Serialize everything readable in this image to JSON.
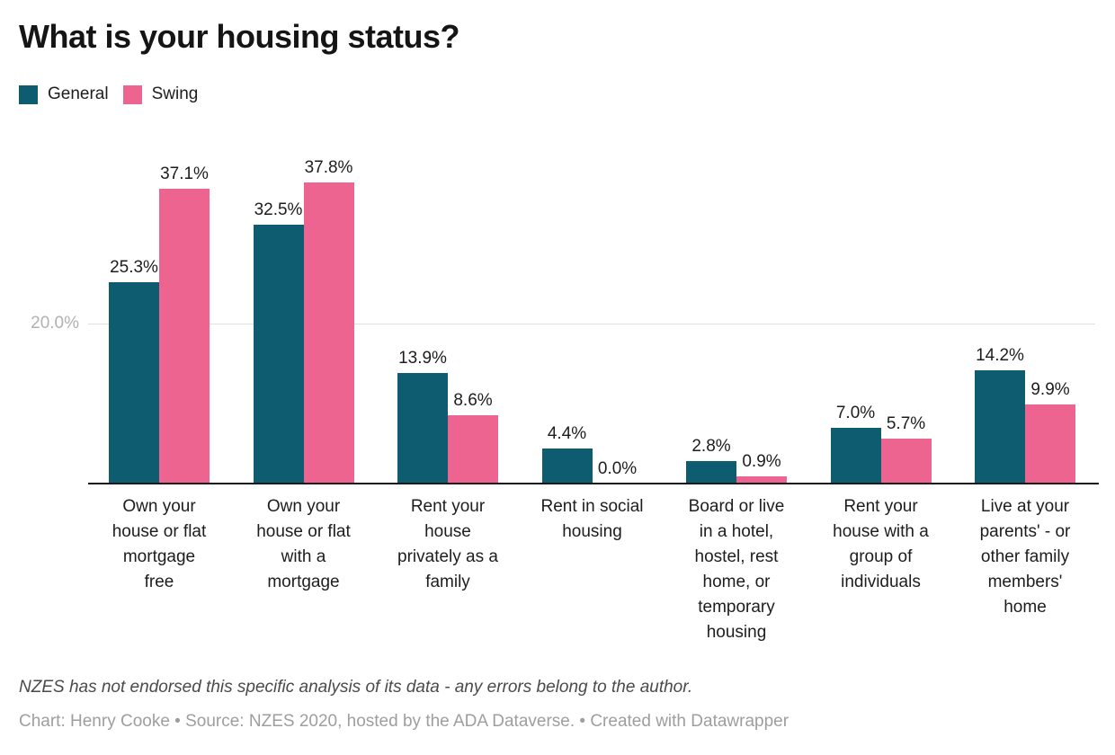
{
  "title": "What is your housing status?",
  "chart_data": {
    "type": "bar",
    "title": "What is your housing status?",
    "categories": [
      "Own your\nhouse or flat\nmortgage\nfree",
      "Own your\nhouse or flat\nwith a\nmortgage",
      "Rent your\nhouse\nprivately as a\nfamily",
      "Rent in social\nhousing",
      "Board or live\nin a hotel,\nhostel, rest\nhome, or\ntemporary\nhousing",
      "Rent your\nhouse with a\ngroup of\nindividuals",
      "Live at your\nparents' - or\nother family\nmembers'\nhome"
    ],
    "series": [
      {
        "name": "General",
        "color": "#0d5c70",
        "values": [
          25.3,
          32.5,
          13.9,
          4.4,
          2.8,
          7.0,
          14.2
        ]
      },
      {
        "name": "Swing",
        "color": "#ee6490",
        "values": [
          37.1,
          37.8,
          8.6,
          0.0,
          0.9,
          5.7,
          9.9
        ]
      }
    ],
    "value_label_suffix": "%",
    "yticks": [
      {
        "value": 20,
        "label": "20.0%"
      }
    ],
    "ylim": [
      0,
      40
    ],
    "grid": true,
    "legend_position": "top-left"
  },
  "footnote": "NZES has not endorsed this specific analysis of its data - any errors belong to the author.",
  "caption": "Chart: Henry Cooke • Source: NZES 2020, hosted by the ADA Dataverse. • Created with Datawrapper",
  "colors": {
    "general": "#0d5c70",
    "swing": "#ee6490",
    "gridline": "#e0e0e0",
    "axis": "#18181a",
    "tick_label": "#b1b1b1"
  }
}
